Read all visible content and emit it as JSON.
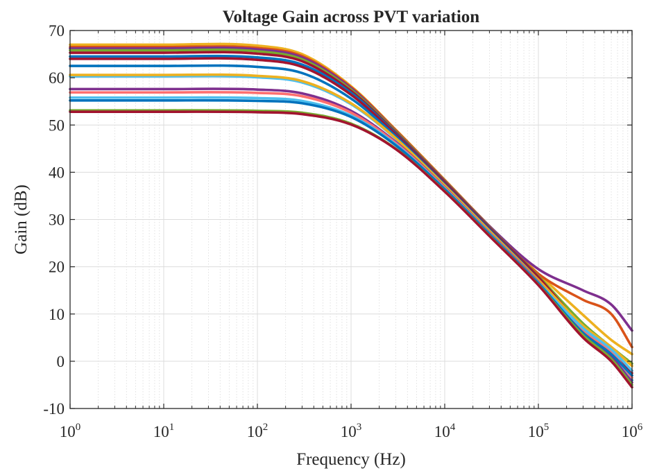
{
  "chart_data": {
    "type": "line",
    "title": "Voltage Gain across PVT variation",
    "xlabel": "Frequency (Hz)",
    "ylabel": "Gain (dB)",
    "x_scale": "log",
    "xlim": [
      1,
      1000000
    ],
    "ylim": [
      -10,
      70
    ],
    "grid": true,
    "minor_grid": true,
    "legend": "none",
    "x_ticks": [
      {
        "base": "10",
        "exp": "0",
        "value": 1
      },
      {
        "base": "10",
        "exp": "1",
        "value": 10
      },
      {
        "base": "10",
        "exp": "2",
        "value": 100
      },
      {
        "base": "10",
        "exp": "3",
        "value": 1000
      },
      {
        "base": "10",
        "exp": "4",
        "value": 10000
      },
      {
        "base": "10",
        "exp": "5",
        "value": 100000
      },
      {
        "base": "10",
        "exp": "6",
        "value": 1000000
      }
    ],
    "y_ticks": [
      "-10",
      "0",
      "10",
      "20",
      "30",
      "40",
      "50",
      "60",
      "70"
    ],
    "x": [
      1,
      10,
      100,
      300,
      1000,
      3000,
      10000,
      30000,
      100000,
      300000,
      600000,
      1000000
    ],
    "series": [
      {
        "color": "#EDB120",
        "values": [
          67,
          67,
          66.8,
          65,
          58.2,
          49,
          38.4,
          28.6,
          18.5,
          9.8,
          4.5,
          1.5
        ]
      },
      {
        "color": "#D95319",
        "values": [
          66.5,
          66.5,
          66.3,
          64.6,
          58,
          48.9,
          38.3,
          28.6,
          18.5,
          13,
          10,
          3
        ]
      },
      {
        "color": "#7E2F8E",
        "values": [
          66.2,
          66.2,
          66,
          64.3,
          57.8,
          48.7,
          38.2,
          28.6,
          19.5,
          15,
          12,
          6.5
        ]
      },
      {
        "color": "#77AC30",
        "values": [
          65.8,
          65.8,
          65.6,
          63.9,
          57.5,
          48.6,
          38.1,
          28.4,
          18,
          8,
          3,
          -0.5
        ]
      },
      {
        "color": "#A2142F",
        "values": [
          65.3,
          65.3,
          65.1,
          63.5,
          57.2,
          48.4,
          38,
          28.3,
          17.8,
          7,
          1.5,
          -2
        ]
      },
      {
        "color": "#0072BD",
        "values": [
          64.5,
          64.5,
          64.3,
          62.8,
          56.8,
          48.2,
          37.8,
          28.1,
          17.5,
          6.5,
          1,
          -3
        ]
      },
      {
        "color": "#A2142F",
        "values": [
          64,
          64,
          63.8,
          62.3,
          56.4,
          48,
          37.7,
          28,
          17.5,
          6.8,
          1.5,
          -2.5
        ]
      },
      {
        "color": "#0072BD",
        "values": [
          62.5,
          62.5,
          62.3,
          61,
          55.6,
          47.6,
          37.4,
          27.8,
          17.2,
          6.5,
          2,
          -4
        ]
      },
      {
        "color": "#4DBEEE",
        "values": [
          60.3,
          60.3,
          60.1,
          59,
          54.4,
          47.1,
          37.1,
          27.5,
          17,
          6,
          1,
          -3.5
        ]
      },
      {
        "color": "#EDB120",
        "values": [
          60.6,
          60.6,
          60.4,
          59.3,
          54.6,
          47.2,
          37.2,
          27.6,
          17.2,
          7.5,
          3,
          -1
        ]
      },
      {
        "color": "#7E2F8E",
        "values": [
          57.6,
          57.6,
          57.5,
          56.7,
          53,
          46.4,
          36.8,
          27.2,
          16.8,
          6,
          1,
          -4.5
        ]
      },
      {
        "color": "#FF6F6F",
        "values": [
          56.9,
          56.9,
          56.8,
          56.1,
          52.6,
          46.2,
          36.7,
          27.1,
          16.7,
          6.5,
          2,
          -3.5
        ]
      },
      {
        "color": "#4DBEEE",
        "values": [
          55.8,
          55.8,
          55.7,
          55.1,
          52,
          45.9,
          36.5,
          27,
          16.6,
          7,
          2.5,
          -2
        ]
      },
      {
        "color": "#0072BD",
        "values": [
          55.2,
          55.2,
          55.1,
          54.6,
          51.7,
          45.7,
          36.4,
          26.9,
          16.5,
          6,
          1.5,
          -3
        ]
      },
      {
        "color": "#77AC30",
        "values": [
          53.1,
          53.1,
          53,
          52.6,
          50.3,
          45,
          36,
          26.6,
          16.2,
          5.5,
          0.5,
          -5
        ]
      },
      {
        "color": "#A2142F",
        "values": [
          52.8,
          52.8,
          52.7,
          52.3,
          50.1,
          44.9,
          35.9,
          26.5,
          16.1,
          5,
          0,
          -5.5
        ]
      }
    ]
  }
}
